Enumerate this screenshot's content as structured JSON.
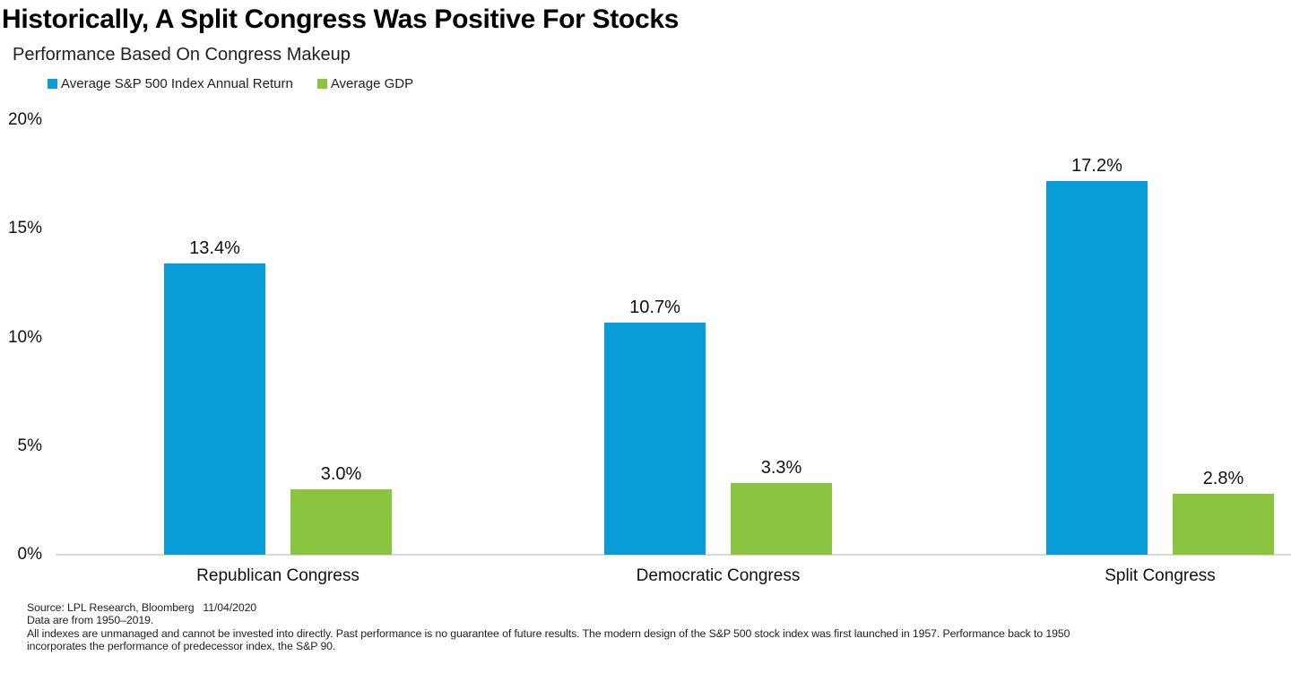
{
  "header": {
    "title": "Historically, A Split Congress Was Positive For Stocks",
    "subtitle": "Performance Based On Congress Makeup"
  },
  "chart_data": {
    "type": "bar",
    "title": "Historically, A Split Congress Was Positive For Stocks",
    "subtitle": "Performance Based On Congress Makeup",
    "categories": [
      "Republican Congress",
      "Democratic Congress",
      "Split Congress"
    ],
    "series": [
      {
        "name": "Average S&P 500 Index Annual Return",
        "color": "#089dd9",
        "values": [
          13.4,
          10.7,
          17.2
        ],
        "value_labels": [
          "13.4%",
          "10.7%",
          "17.2%"
        ]
      },
      {
        "name": "Average GDP",
        "color": "#8bc540",
        "values": [
          3.0,
          3.3,
          2.8
        ],
        "value_labels": [
          "3.0%",
          "3.3%",
          "2.8%"
        ]
      }
    ],
    "ylim": [
      0,
      20
    ],
    "yticks": [
      {
        "value": 0,
        "label": "0%"
      },
      {
        "value": 5,
        "label": "5%"
      },
      {
        "value": 10,
        "label": "10%"
      },
      {
        "value": 15,
        "label": "15%"
      },
      {
        "value": 20,
        "label": "20%"
      }
    ],
    "grid": false,
    "legend_position": "top-left",
    "axis_color": "#d9d9d9"
  },
  "footer": {
    "lines": [
      "Source: LPL Research, Bloomberg   11/04/2020",
      "Data are from 1950–2019.",
      "All indexes are unmanaged and cannot be invested into directly. Past performance is no guarantee of future results. The modern design of the S&P 500 stock index was first launched in 1957. Performance back to 1950",
      "incorporates the performance of predecessor index, the S&P 90."
    ]
  }
}
